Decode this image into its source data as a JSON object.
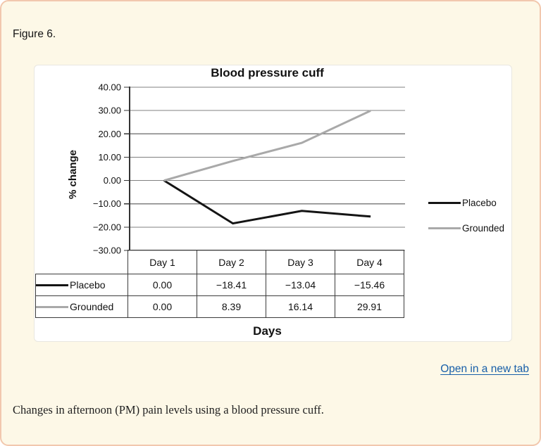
{
  "page": {
    "figure_label": "Figure 6.",
    "open_in_new_tab": "Open in a new tab",
    "caption": "Changes in afternoon (PM) pain levels using a blood pressure cuff."
  },
  "colors": {
    "card_background": "#fdf8e7",
    "card_border": "#f2c8ae",
    "panel_background": "#ffffff",
    "link_blue": "#185fa9",
    "gridline": "#808080",
    "axis": "#333333",
    "table_border": "#3c3c3c",
    "placebo_line": "#141414",
    "grounded_line": "#a9a9a9"
  },
  "chart_data": {
    "type": "line",
    "title": "Blood pressure cuff",
    "xlabel": "Days",
    "ylabel": "% change",
    "categories": [
      "Day 1",
      "Day 2",
      "Day 3",
      "Day 4"
    ],
    "series": [
      {
        "name": "Placebo",
        "color": "#141414",
        "values": [
          0.0,
          -18.41,
          -13.04,
          -15.46
        ]
      },
      {
        "name": "Grounded",
        "color": "#a9a9a9",
        "values": [
          0.0,
          8.39,
          16.14,
          29.91
        ]
      }
    ],
    "ylim": [
      -30,
      40
    ],
    "ytick_step": 10,
    "ytick_labels": [
      "40.00",
      "30.00",
      "20.00",
      "10.00",
      "0.00",
      "−10.00",
      "−20.00",
      "−30.00"
    ],
    "grid": true,
    "legend_position": "right",
    "table": {
      "rows": [
        {
          "name": "Placebo",
          "cells": [
            "0.00",
            "−18.41",
            "−13.04",
            "−15.46"
          ]
        },
        {
          "name": "Grounded",
          "cells": [
            "0.00",
            "8.39",
            "16.14",
            "29.91"
          ]
        }
      ]
    }
  }
}
